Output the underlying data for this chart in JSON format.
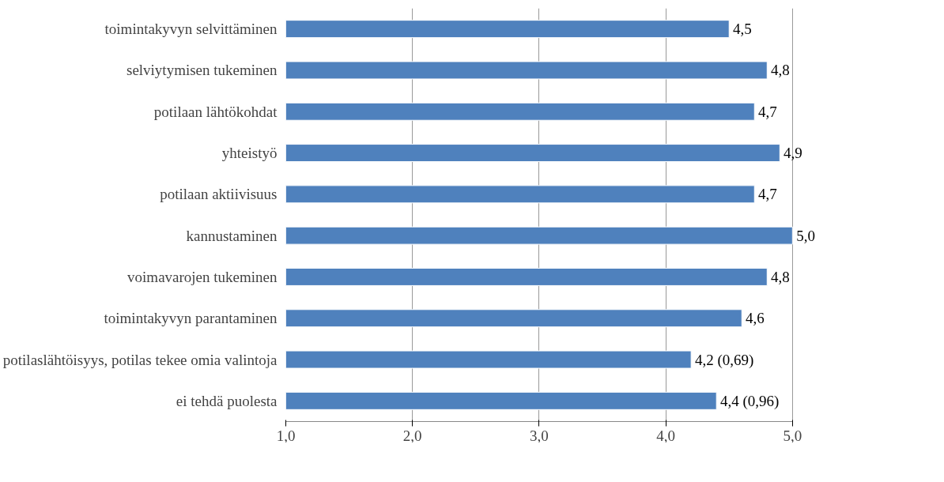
{
  "chart_data": {
    "type": "bar",
    "orientation": "horizontal",
    "categories": [
      "toimintakyvyn selvittäminen",
      "selviytymisen tukeminen",
      "potilaan lähtökohdat",
      "yhteistyö",
      "potilaan aktiivisuus",
      "kannustaminen",
      "voimavarojen tukeminen",
      "toimintakyvyn parantaminen",
      "potilaslähtöisyys, potilas tekee omia valintoja",
      "ei tehdä puolesta"
    ],
    "values": [
      4.5,
      4.8,
      4.7,
      4.9,
      4.7,
      5.0,
      4.8,
      4.6,
      4.2,
      4.4
    ],
    "value_labels": [
      "4,5",
      "4,8",
      "4,7",
      "4,9",
      "4,7",
      "5,0",
      "4,8",
      "4,6",
      "4,2 (0,69)",
      "4,4 (0,96)"
    ],
    "color": "#4f81bd",
    "xlim": [
      1,
      5
    ],
    "xticks": [
      {
        "value": 1,
        "label": "1,0"
      },
      {
        "value": 2,
        "label": "2,0"
      },
      {
        "value": 3,
        "label": "3,0"
      },
      {
        "value": 4,
        "label": "4,0"
      },
      {
        "value": 5,
        "label": "5,0"
      }
    ],
    "grid": "x"
  }
}
